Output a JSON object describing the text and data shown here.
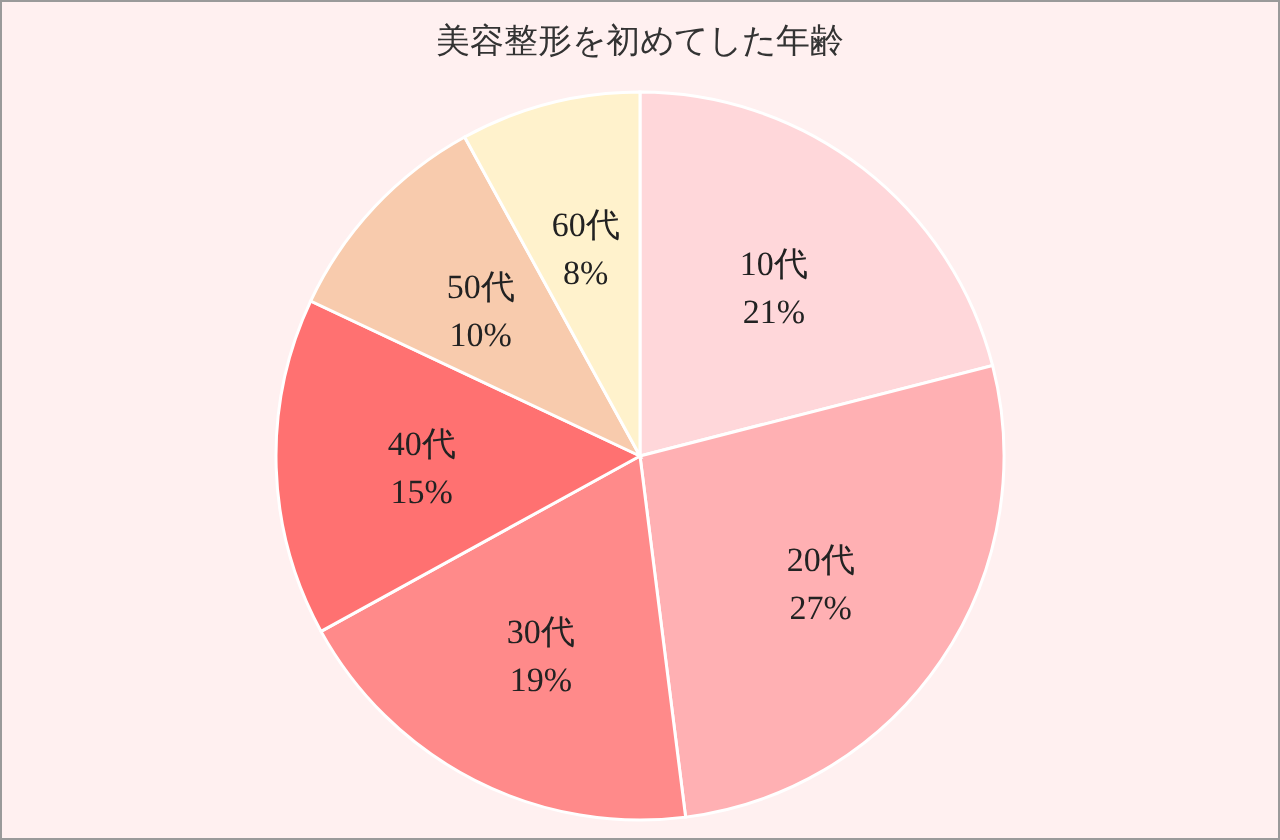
{
  "chart_data": {
    "type": "pie",
    "title": "美容整形を初めてした年齢",
    "categories": [
      "10代",
      "20代",
      "30代",
      "40代",
      "50代",
      "60代"
    ],
    "values": [
      21,
      27,
      19,
      15,
      10,
      8
    ],
    "colors": [
      "#ffd7da",
      "#ffb0b3",
      "#ff8a8a",
      "#ff7171",
      "#f8cbad",
      "#fff2cc"
    ],
    "value_labels": [
      "21%",
      "27%",
      "19%",
      "15%",
      "10%",
      "8%"
    ]
  }
}
